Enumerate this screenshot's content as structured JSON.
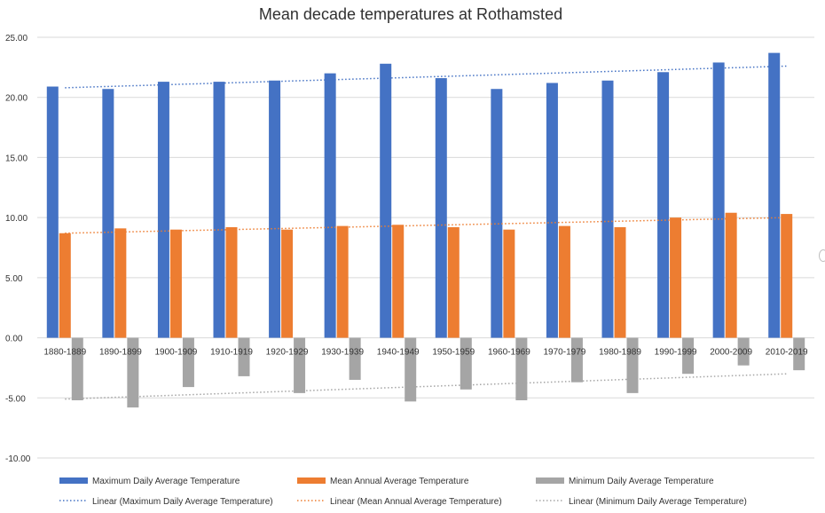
{
  "chart_data": {
    "type": "bar",
    "title": "Mean decade temperatures at Rothamsted",
    "xlabel": "",
    "ylabel": "",
    "ylim": [
      -10,
      25
    ],
    "yticks": [
      25,
      20,
      15,
      10,
      5,
      0,
      -5,
      -10
    ],
    "ytick_labels": [
      "25.00",
      "20.00",
      "15.00",
      "10.00",
      "5.00",
      "0.00",
      "-5.00",
      "-10.00"
    ],
    "grid": true,
    "legend_position": "bottom",
    "categories": [
      "1880-1889",
      "1890-1899",
      "1900-1909",
      "1910-1919",
      "1920-1929",
      "1930-1939",
      "1940-1949",
      "1950-1959",
      "1960-1969",
      "1970-1979",
      "1980-1989",
      "1990-1999",
      "2000-2009",
      "2010-2019"
    ],
    "series": [
      {
        "name": "Maximum Daily Average Temperature",
        "color": "#4472c4",
        "values": [
          20.9,
          20.7,
          21.3,
          21.3,
          21.4,
          22.0,
          22.8,
          21.6,
          20.7,
          21.2,
          21.4,
          22.1,
          22.9,
          23.7
        ]
      },
      {
        "name": "Mean Annual Average Temperature",
        "color": "#ed7d31",
        "values": [
          8.7,
          9.1,
          9.0,
          9.2,
          9.0,
          9.3,
          9.4,
          9.2,
          9.0,
          9.3,
          9.2,
          10.0,
          10.4,
          10.3
        ]
      },
      {
        "name": "Minimum Daily Average Temperature",
        "color": "#a5a5a5",
        "values": [
          -5.2,
          -5.8,
          -4.1,
          -3.2,
          -4.6,
          -3.5,
          -5.3,
          -4.3,
          -5.2,
          -3.7,
          -4.6,
          -3.0,
          -2.3,
          -2.7
        ]
      }
    ],
    "trendlines": [
      {
        "name": "Linear (Maximum Daily Average Temperature)",
        "color": "#4472c4",
        "start": 20.8,
        "end": 22.6
      },
      {
        "name": "Linear (Mean Annual Average Temperature)",
        "color": "#ed7d31",
        "start": 8.7,
        "end": 10.0
      },
      {
        "name": "Linear (Minimum Daily Average Temperature)",
        "color": "#a5a5a5",
        "start": -5.1,
        "end": -3.0
      }
    ]
  }
}
